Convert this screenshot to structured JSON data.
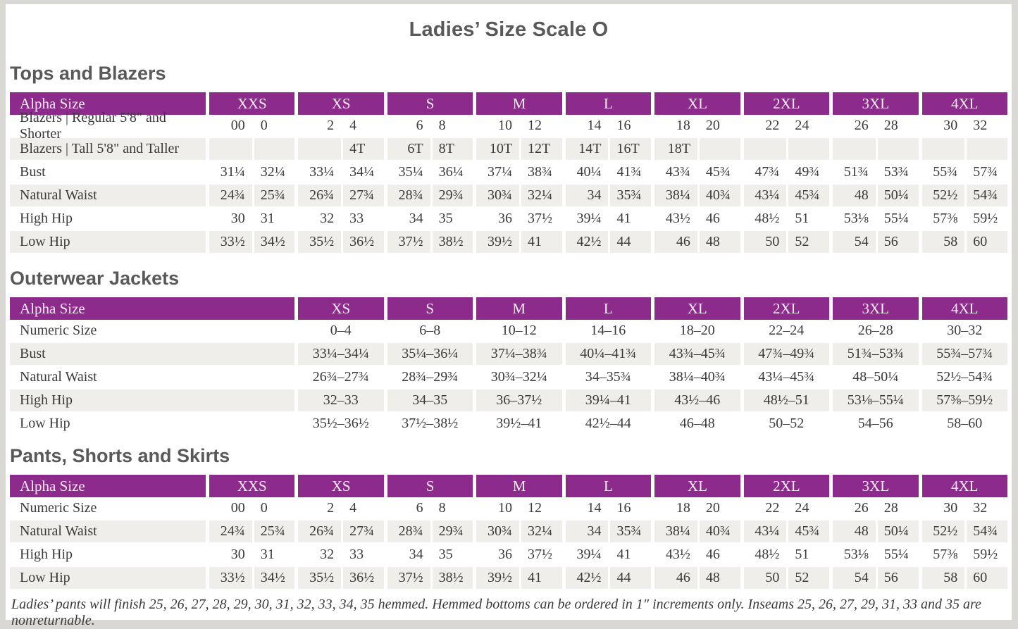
{
  "page_title": "Ladies’ Size Scale O",
  "colors": {
    "header_purple": "#8c2b8c",
    "header_text": "#f6edf5",
    "stripe_gray": "#f0eeeb",
    "heading_gray": "#595959",
    "body_text": "#3a3a3a",
    "outer_background": "#dad8d5"
  },
  "tables": {
    "tops": {
      "heading": "Tops and Blazers",
      "header_label": "Alpha Size",
      "sizes": [
        "XXS",
        "XS",
        "S",
        "M",
        "L",
        "XL",
        "2XL",
        "3XL",
        "4XL"
      ],
      "rows": [
        {
          "label": "Blazers  |  Regular 5'8\" and Shorter",
          "values": [
            [
              "00",
              "0"
            ],
            [
              "2",
              "4"
            ],
            [
              "6",
              "8"
            ],
            [
              "10",
              "12"
            ],
            [
              "14",
              "16"
            ],
            [
              "18",
              "20"
            ],
            [
              "22",
              "24"
            ],
            [
              "26",
              "28"
            ],
            [
              "30",
              "32"
            ]
          ]
        },
        {
          "label": "Blazers  |  Tall 5'8\" and Taller",
          "values": [
            [
              "",
              ""
            ],
            [
              "",
              "4T"
            ],
            [
              "6T",
              "8T"
            ],
            [
              "10T",
              "12T"
            ],
            [
              "14T",
              "16T"
            ],
            [
              "18T",
              ""
            ],
            [
              "",
              ""
            ],
            [
              "",
              ""
            ],
            [
              "",
              ""
            ]
          ]
        },
        {
          "label": "Bust",
          "values": [
            [
              "31¼",
              "32¼"
            ],
            [
              "33¼",
              "34¼"
            ],
            [
              "35¼",
              "36¼"
            ],
            [
              "37¼",
              "38¾"
            ],
            [
              "40¼",
              "41¾"
            ],
            [
              "43¾",
              "45¾"
            ],
            [
              "47¾",
              "49¾"
            ],
            [
              "51¾",
              "53¾"
            ],
            [
              "55¾",
              "57¾"
            ]
          ]
        },
        {
          "label": "Natural Waist",
          "values": [
            [
              "24¾",
              "25¾"
            ],
            [
              "26¾",
              "27¾"
            ],
            [
              "28¾",
              "29¾"
            ],
            [
              "30¾",
              "32¼"
            ],
            [
              "34",
              "35¾"
            ],
            [
              "38¼",
              "40¾"
            ],
            [
              "43¼",
              "45¾"
            ],
            [
              "48",
              "50¼"
            ],
            [
              "52½",
              "54¾"
            ]
          ]
        },
        {
          "label": "High Hip",
          "values": [
            [
              "30",
              "31"
            ],
            [
              "32",
              "33"
            ],
            [
              "34",
              "35"
            ],
            [
              "36",
              "37½"
            ],
            [
              "39¼",
              "41"
            ],
            [
              "43½",
              "46"
            ],
            [
              "48½",
              "51"
            ],
            [
              "53⅛",
              "55¼"
            ],
            [
              "57⅜",
              "59½"
            ]
          ]
        },
        {
          "label": "Low Hip",
          "values": [
            [
              "33½",
              "34½"
            ],
            [
              "35½",
              "36½"
            ],
            [
              "37½",
              "38½"
            ],
            [
              "39½",
              "41"
            ],
            [
              "42½",
              "44"
            ],
            [
              "46",
              "48"
            ],
            [
              "50",
              "52"
            ],
            [
              "54",
              "56"
            ],
            [
              "58",
              "60"
            ]
          ]
        }
      ]
    },
    "outerwear": {
      "heading": "Outerwear Jackets",
      "header_label": "Alpha Size",
      "sizes": [
        "XS",
        "S",
        "M",
        "L",
        "XL",
        "2XL",
        "3XL",
        "4XL"
      ],
      "rows": [
        {
          "label": "Numeric Size",
          "values": [
            "0–4",
            "6–8",
            "10–12",
            "14–16",
            "18–20",
            "22–24",
            "26–28",
            "30–32"
          ]
        },
        {
          "label": "Bust",
          "values": [
            "33¼–34¼",
            "35¼–36¼",
            "37¼–38¾",
            "40¼–41¾",
            "43¾–45¾",
            "47¾–49¾",
            "51¾–53¾",
            "55¾–57¾"
          ]
        },
        {
          "label": "Natural Waist",
          "values": [
            "26¾–27¾",
            "28¾–29¾",
            "30¾–32¼",
            "34–35¾",
            "38¼–40¾",
            "43¼–45¾",
            "48–50¼",
            "52½–54¾"
          ]
        },
        {
          "label": "High Hip",
          "values": [
            "32–33",
            "34–35",
            "36–37½",
            "39¼–41",
            "43½–46",
            "48½–51",
            "53⅛–55¼",
            "57⅜–59½"
          ]
        },
        {
          "label": "Low Hip",
          "values": [
            "35½–36½",
            "37½–38½",
            "39½–41",
            "42½–44",
            "46–48",
            "50–52",
            "54–56",
            "58–60"
          ]
        }
      ]
    },
    "pants": {
      "heading": "Pants, Shorts and Skirts",
      "header_label": "Alpha Size",
      "sizes": [
        "XXS",
        "XS",
        "S",
        "M",
        "L",
        "XL",
        "2XL",
        "3XL",
        "4XL"
      ],
      "rows": [
        {
          "label": "Numeric Size",
          "values": [
            [
              "00",
              "0"
            ],
            [
              "2",
              "4"
            ],
            [
              "6",
              "8"
            ],
            [
              "10",
              "12"
            ],
            [
              "14",
              "16"
            ],
            [
              "18",
              "20"
            ],
            [
              "22",
              "24"
            ],
            [
              "26",
              "28"
            ],
            [
              "30",
              "32"
            ]
          ]
        },
        {
          "label": "Natural Waist",
          "values": [
            [
              "24¾",
              "25¾"
            ],
            [
              "26¾",
              "27¾"
            ],
            [
              "28¾",
              "29¾"
            ],
            [
              "30¾",
              "32¼"
            ],
            [
              "34",
              "35¾"
            ],
            [
              "38¼",
              "40¾"
            ],
            [
              "43¼",
              "45¾"
            ],
            [
              "48",
              "50¼"
            ],
            [
              "52½",
              "54¾"
            ]
          ]
        },
        {
          "label": "High Hip",
          "values": [
            [
              "30",
              "31"
            ],
            [
              "32",
              "33"
            ],
            [
              "34",
              "35"
            ],
            [
              "36",
              "37½"
            ],
            [
              "39¼",
              "41"
            ],
            [
              "43½",
              "46"
            ],
            [
              "48½",
              "51"
            ],
            [
              "53⅛",
              "55¼"
            ],
            [
              "57⅜",
              "59½"
            ]
          ]
        },
        {
          "label": "Low Hip",
          "values": [
            [
              "33½",
              "34½"
            ],
            [
              "35½",
              "36½"
            ],
            [
              "37½",
              "38½"
            ],
            [
              "39½",
              "41"
            ],
            [
              "42½",
              "44"
            ],
            [
              "46",
              "48"
            ],
            [
              "50",
              "52"
            ],
            [
              "54",
              "56"
            ],
            [
              "58",
              "60"
            ]
          ]
        }
      ]
    }
  },
  "footnote": "Ladies’ pants will finish 25, 26, 27, 28, 29, 30, 31, 32, 33, 34, 35 hemmed. Hemmed bottoms can be ordered in 1″ increments only. Inseams 25, 26, 27, 29, 31, 33 and 35 are nonreturnable."
}
